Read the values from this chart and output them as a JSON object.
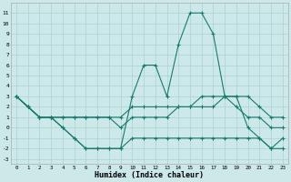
{
  "xlabel": "Humidex (Indice chaleur)",
  "xlim": [
    -0.5,
    23.5
  ],
  "ylim": [
    -3.5,
    12
  ],
  "yticks": [
    -3,
    -2,
    -1,
    0,
    1,
    2,
    3,
    4,
    5,
    6,
    7,
    8,
    9,
    10,
    11
  ],
  "xticks": [
    0,
    1,
    2,
    3,
    4,
    5,
    6,
    7,
    8,
    9,
    10,
    11,
    12,
    13,
    14,
    15,
    16,
    17,
    18,
    19,
    20,
    21,
    22,
    23
  ],
  "bg_color": "#cce8e8",
  "grid_color": "#b0d4d4",
  "line_color": "#1a7a6e",
  "lines": [
    {
      "x": [
        0,
        1,
        2,
        3,
        4,
        5,
        6,
        7,
        8,
        9,
        10,
        11,
        12,
        13,
        14,
        15,
        16,
        17,
        18,
        19,
        20,
        21,
        22,
        23
      ],
      "y": [
        3,
        2,
        1,
        1,
        0,
        -1,
        -2,
        -2,
        -2,
        -2,
        3,
        6,
        6,
        3,
        8,
        11,
        11,
        9,
        3,
        3,
        0,
        -1,
        -2,
        -1
      ]
    },
    {
      "x": [
        0,
        1,
        2,
        3,
        4,
        5,
        6,
        7,
        8,
        9,
        10,
        11,
        12,
        13,
        14,
        15,
        16,
        17,
        18,
        19,
        20,
        21,
        22,
        23
      ],
      "y": [
        3,
        2,
        1,
        1,
        1,
        1,
        1,
        1,
        1,
        1,
        2,
        2,
        2,
        2,
        2,
        2,
        3,
        3,
        3,
        3,
        3,
        2,
        1,
        1
      ]
    },
    {
      "x": [
        0,
        1,
        2,
        3,
        4,
        5,
        6,
        7,
        8,
        9,
        10,
        11,
        12,
        13,
        14,
        15,
        16,
        17,
        18,
        19,
        20,
        21,
        22,
        23
      ],
      "y": [
        3,
        2,
        1,
        1,
        1,
        1,
        1,
        1,
        1,
        0,
        1,
        1,
        1,
        1,
        2,
        2,
        2,
        2,
        3,
        2,
        1,
        1,
        0,
        0
      ]
    },
    {
      "x": [
        0,
        1,
        2,
        3,
        4,
        5,
        6,
        7,
        8,
        9,
        10,
        11,
        12,
        13,
        14,
        15,
        16,
        17,
        18,
        19,
        20,
        21,
        22,
        23
      ],
      "y": [
        3,
        2,
        1,
        1,
        0,
        -1,
        -2,
        -2,
        -2,
        -2,
        -1,
        -1,
        -1,
        -1,
        -1,
        -1,
        -1,
        -1,
        -1,
        -1,
        -1,
        -1,
        -2,
        -2
      ]
    }
  ]
}
